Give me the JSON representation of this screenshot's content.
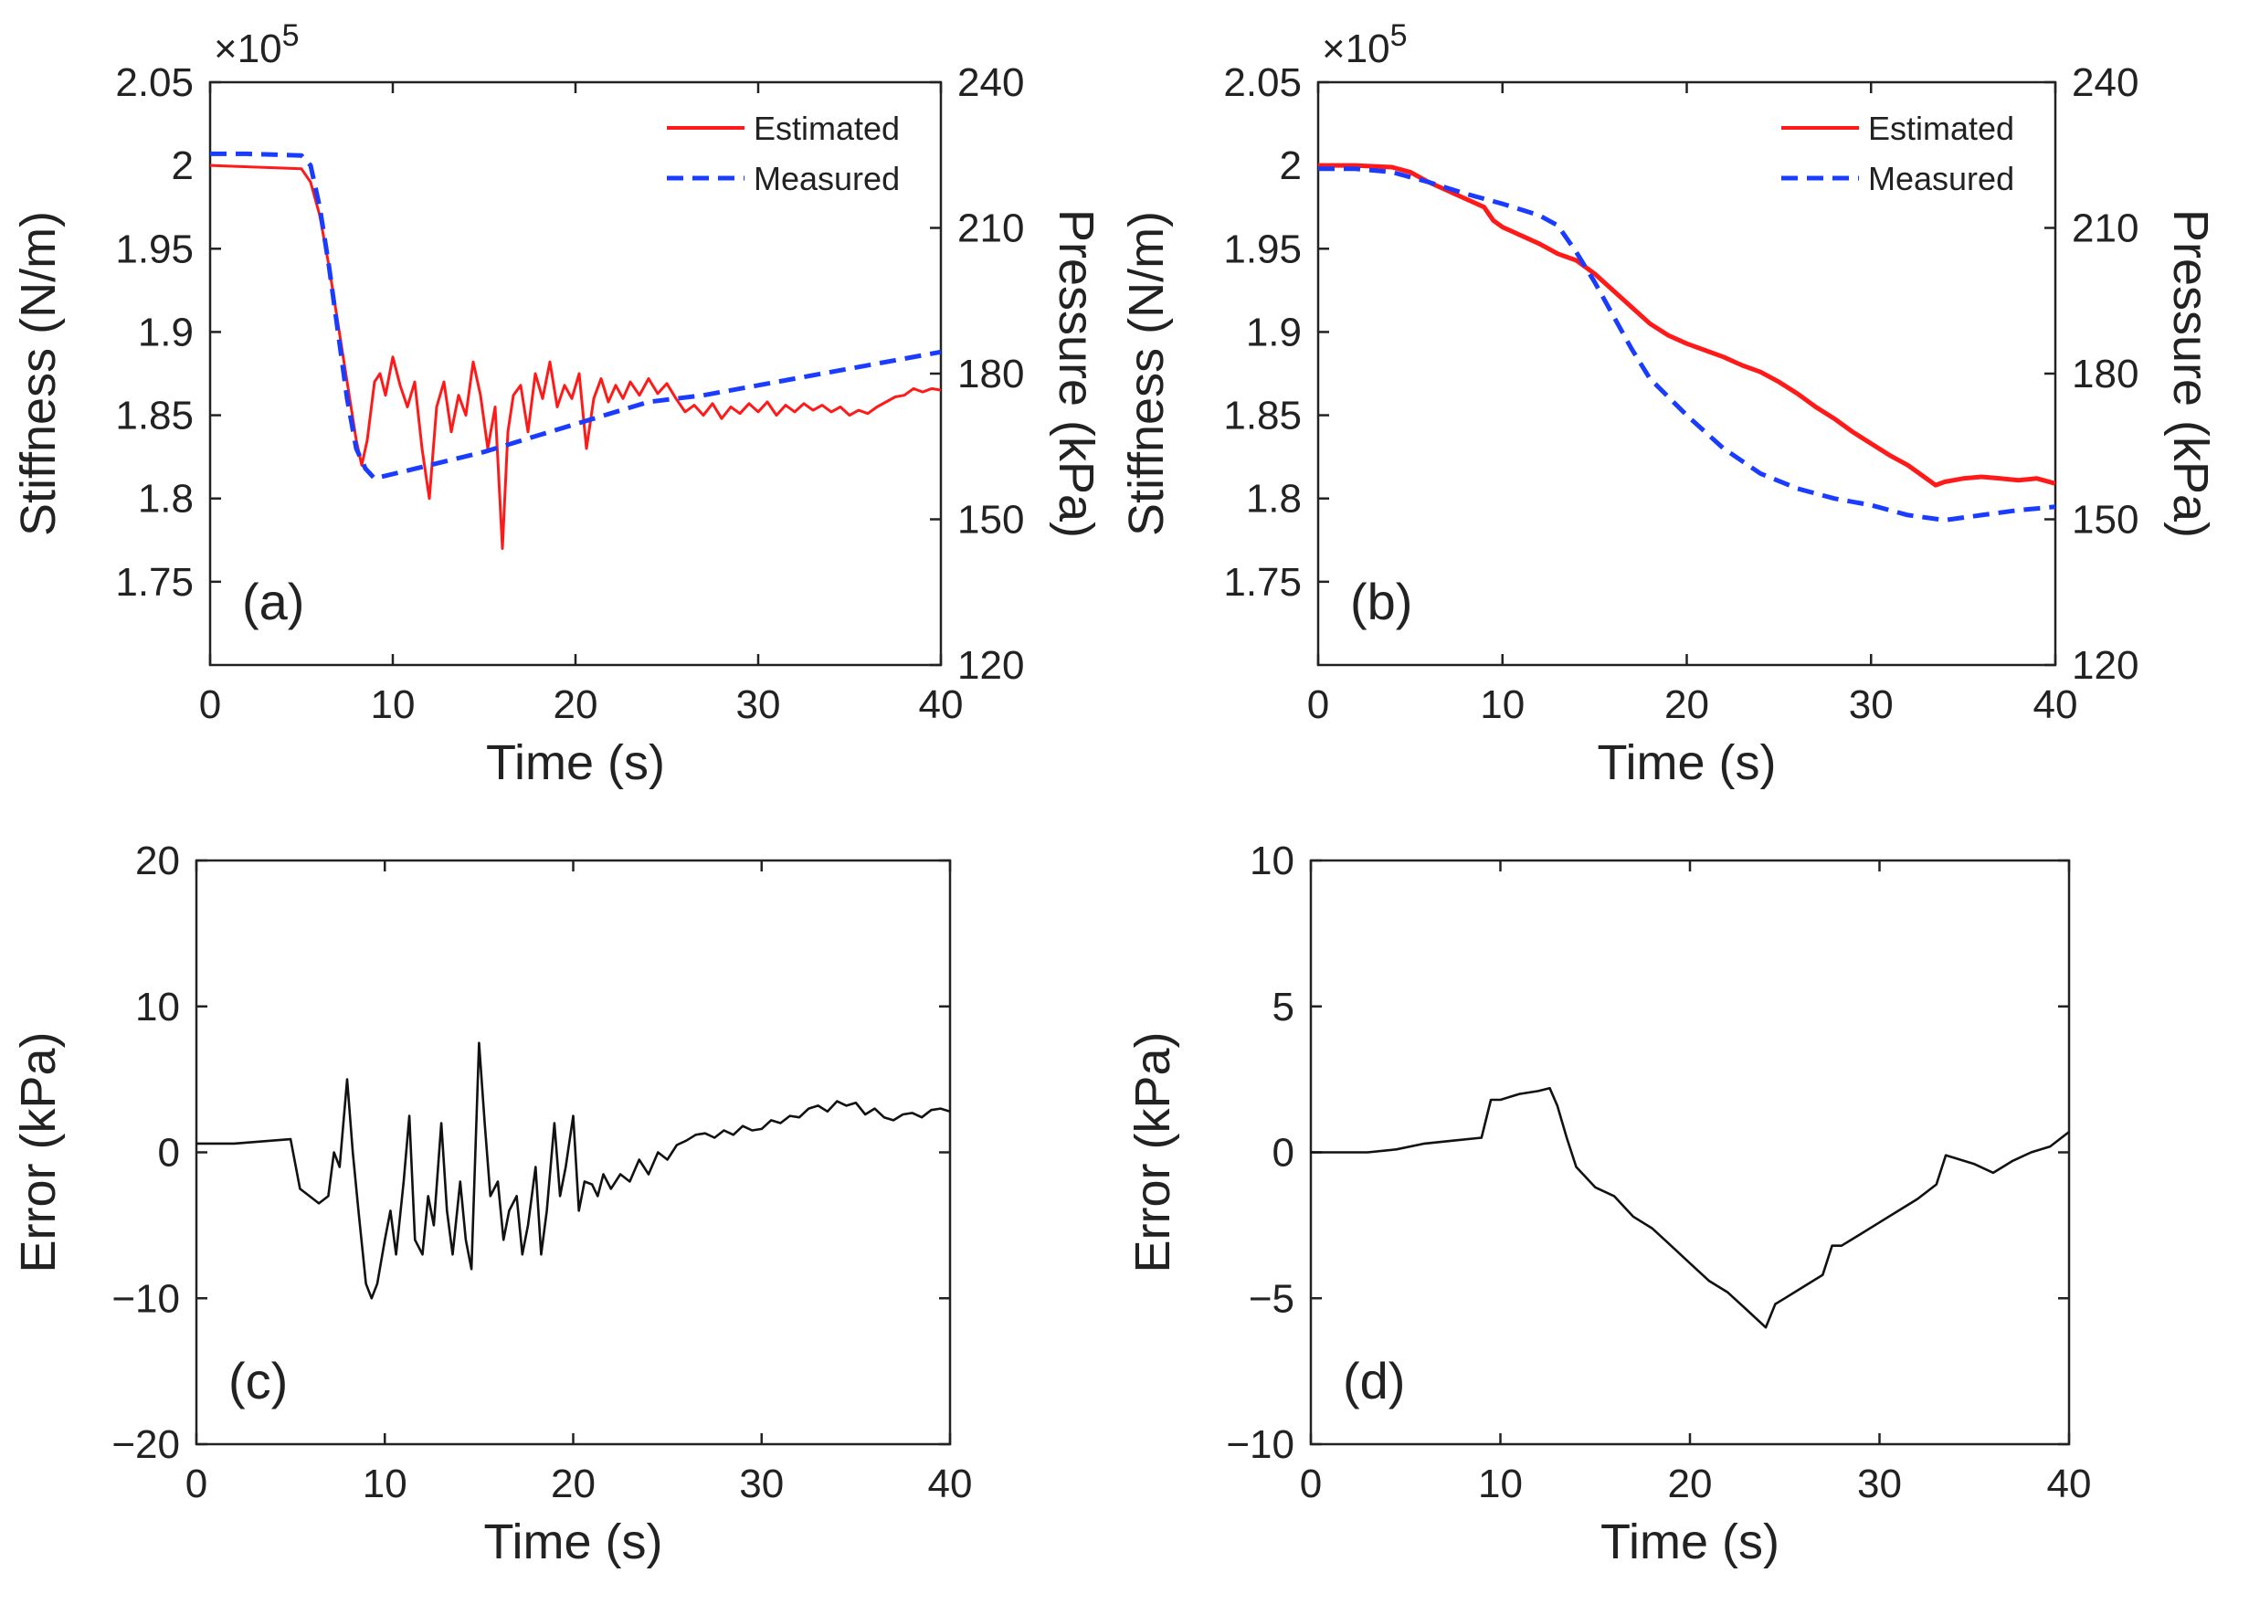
{
  "colors": {
    "estimated": "#ff1a1a",
    "measured": "#1a3cff",
    "error": "#111111",
    "axis": "#222222"
  },
  "chart_data": [
    {
      "id": "a",
      "type": "line",
      "panel_label": "(a)",
      "xlabel": "Time (s)",
      "ylabel": "Stiffness (N/m)",
      "ylabel_right": "Pressure (kPa)",
      "exponent_label": "×10",
      "exponent_power": "5",
      "xlim": [
        0,
        40
      ],
      "ylim": [
        1.7,
        2.05
      ],
      "ylim_right": [
        120,
        240
      ],
      "xticks": [
        "0",
        "10",
        "20",
        "30",
        "40"
      ],
      "yticks": [
        "2.05",
        "2",
        "1.95",
        "1.9",
        "1.85",
        "1.8",
        "1.75"
      ],
      "yticks_right": [
        "240",
        "210",
        "180",
        "150",
        "120"
      ],
      "legend": [
        "Estimated",
        "Measured"
      ],
      "legend_position": "top-right",
      "series": [
        {
          "name": "Estimated",
          "axis": "left",
          "style": "solid",
          "x": [
            0,
            5,
            5.5,
            6,
            6.5,
            7,
            7.5,
            8,
            8.3,
            8.6,
            9,
            9.3,
            9.6,
            10,
            10.4,
            10.8,
            11.2,
            11.6,
            12,
            12.4,
            12.8,
            13.2,
            13.6,
            14,
            14.4,
            14.8,
            15.2,
            15.6,
            16,
            16.3,
            16.6,
            17,
            17.4,
            17.8,
            18.2,
            18.6,
            19,
            19.4,
            19.8,
            20.2,
            20.6,
            21,
            21.4,
            21.8,
            22.2,
            22.6,
            23,
            23.5,
            24,
            24.5,
            25,
            25.5,
            26,
            26.5,
            27,
            27.5,
            28,
            28.5,
            29,
            29.5,
            30,
            30.5,
            31,
            31.5,
            32,
            32.5,
            33,
            33.5,
            34,
            34.5,
            35,
            35.5,
            36,
            36.5,
            37,
            37.5,
            38,
            38.5,
            39,
            39.5,
            40
          ],
          "y": [
            2.0,
            1.998,
            1.99,
            1.97,
            1.94,
            1.905,
            1.87,
            1.835,
            1.82,
            1.835,
            1.87,
            1.875,
            1.862,
            1.885,
            1.868,
            1.855,
            1.87,
            1.83,
            1.8,
            1.855,
            1.87,
            1.84,
            1.862,
            1.85,
            1.882,
            1.862,
            1.83,
            1.855,
            1.77,
            1.84,
            1.862,
            1.868,
            1.84,
            1.875,
            1.86,
            1.882,
            1.855,
            1.868,
            1.86,
            1.875,
            1.83,
            1.86,
            1.872,
            1.858,
            1.868,
            1.86,
            1.87,
            1.862,
            1.872,
            1.863,
            1.869,
            1.86,
            1.852,
            1.856,
            1.85,
            1.857,
            1.848,
            1.855,
            1.851,
            1.857,
            1.852,
            1.858,
            1.85,
            1.856,
            1.852,
            1.857,
            1.853,
            1.856,
            1.852,
            1.855,
            1.85,
            1.853,
            1.851,
            1.855,
            1.858,
            1.861,
            1.862,
            1.866,
            1.864,
            1.866,
            1.865
          ]
        },
        {
          "name": "Measured",
          "axis": "left",
          "style": "dashed",
          "x": [
            0,
            2,
            5,
            5.5,
            6,
            6.5,
            7,
            7.5,
            8,
            8.5,
            9,
            12,
            15,
            18,
            21,
            24,
            27,
            30,
            33,
            36,
            40
          ],
          "y": [
            2.007,
            2.007,
            2.006,
            2.0,
            1.975,
            1.94,
            1.9,
            1.86,
            1.83,
            1.818,
            1.812,
            1.82,
            1.828,
            1.838,
            1.848,
            1.858,
            1.862,
            1.868,
            1.874,
            1.88,
            1.888
          ]
        }
      ]
    },
    {
      "id": "b",
      "type": "line",
      "panel_label": "(b)",
      "xlabel": "Time (s)",
      "ylabel": "Stiffness (N/m)",
      "ylabel_right": "Pressure (kPa)",
      "exponent_label": "×10",
      "exponent_power": "5",
      "xlim": [
        0,
        40
      ],
      "ylim": [
        1.7,
        2.05
      ],
      "ylim_right": [
        120,
        240
      ],
      "xticks": [
        "0",
        "10",
        "20",
        "30",
        "40"
      ],
      "yticks": [
        "2.05",
        "2",
        "1.95",
        "1.9",
        "1.85",
        "1.8",
        "1.75"
      ],
      "yticks_right": [
        "240",
        "210",
        "180",
        "150",
        "120"
      ],
      "legend": [
        "Estimated",
        "Measured"
      ],
      "legend_position": "top-right",
      "series": [
        {
          "name": "Estimated",
          "axis": "left",
          "style": "solid",
          "x": [
            0,
            2,
            4,
            5,
            6,
            7,
            8,
            9,
            9.5,
            10,
            11,
            12,
            13,
            14,
            15,
            16,
            17,
            18,
            19,
            20,
            21,
            22,
            23,
            24,
            25,
            26,
            27,
            28,
            29,
            30,
            31,
            32,
            33,
            33.5,
            34,
            35,
            36,
            37,
            38,
            39,
            40
          ],
          "y": [
            2.0,
            2.0,
            1.999,
            1.996,
            1.99,
            1.985,
            1.98,
            1.975,
            1.967,
            1.963,
            1.958,
            1.953,
            1.947,
            1.943,
            1.935,
            1.925,
            1.915,
            1.905,
            1.898,
            1.893,
            1.889,
            1.885,
            1.88,
            1.876,
            1.87,
            1.863,
            1.855,
            1.848,
            1.84,
            1.833,
            1.826,
            1.82,
            1.812,
            1.808,
            1.81,
            1.812,
            1.813,
            1.812,
            1.811,
            1.812,
            1.809
          ]
        },
        {
          "name": "Measured",
          "axis": "left",
          "style": "dashed",
          "x": [
            0,
            2,
            4,
            6,
            8,
            10,
            12,
            13,
            14,
            15,
            16,
            17,
            18,
            20,
            22,
            24,
            26,
            28,
            30,
            32,
            34,
            36,
            38,
            40
          ],
          "y": [
            1.998,
            1.998,
            1.996,
            1.99,
            1.983,
            1.977,
            1.97,
            1.964,
            1.948,
            1.93,
            1.91,
            1.89,
            1.872,
            1.85,
            1.83,
            1.815,
            1.806,
            1.8,
            1.796,
            1.79,
            1.787,
            1.79,
            1.793,
            1.795
          ]
        }
      ]
    },
    {
      "id": "c",
      "type": "line",
      "panel_label": "(c)",
      "xlabel": "Time (s)",
      "ylabel": "Error (kPa)",
      "xlim": [
        0,
        40
      ],
      "ylim": [
        -20,
        20
      ],
      "xticks": [
        "0",
        "10",
        "20",
        "30",
        "40"
      ],
      "yticks": [
        "20",
        "10",
        "0",
        "−10",
        "−20"
      ],
      "series": [
        {
          "name": "Error",
          "axis": "left",
          "style": "solid",
          "x": [
            0,
            2,
            5,
            5.5,
            6,
            6.5,
            7,
            7.3,
            7.6,
            8,
            8.3,
            8.6,
            9,
            9.3,
            9.6,
            10,
            10.3,
            10.6,
            11,
            11.3,
            11.6,
            12,
            12.3,
            12.6,
            13,
            13.3,
            13.6,
            14,
            14.3,
            14.6,
            15,
            15.3,
            15.6,
            16,
            16.3,
            16.6,
            17,
            17.3,
            17.6,
            18,
            18.3,
            18.6,
            19,
            19.3,
            19.6,
            20,
            20.3,
            20.6,
            21,
            21.3,
            21.6,
            22,
            22.5,
            23,
            23.5,
            24,
            24.5,
            25,
            25.5,
            26,
            26.5,
            27,
            27.5,
            28,
            28.5,
            29,
            29.5,
            30,
            30.5,
            31,
            31.5,
            32,
            32.5,
            33,
            33.5,
            34,
            34.5,
            35,
            35.5,
            36,
            36.5,
            37,
            37.5,
            38,
            38.5,
            39,
            39.5,
            40
          ],
          "y": [
            0.6,
            0.6,
            0.9,
            -2.5,
            -3,
            -3.5,
            -3,
            0,
            -1,
            5,
            0,
            -4,
            -9,
            -10,
            -9,
            -6,
            -4,
            -7,
            -2,
            2.5,
            -6,
            -7,
            -3,
            -5,
            2,
            -4,
            -7,
            -2,
            -6,
            -8,
            7.5,
            2,
            -3,
            -2,
            -6,
            -4,
            -3,
            -7,
            -5,
            -1,
            -7,
            -4,
            2,
            -3,
            -1,
            2.5,
            -4,
            -2,
            -2.2,
            -3,
            -1.5,
            -2.5,
            -1.5,
            -2,
            -0.5,
            -1.5,
            0,
            -0.5,
            0.5,
            0.8,
            1.2,
            1.3,
            1.0,
            1.5,
            1.2,
            1.8,
            1.5,
            1.6,
            2.2,
            2.0,
            2.5,
            2.4,
            3.0,
            3.2,
            2.8,
            3.5,
            3.2,
            3.4,
            2.6,
            3.0,
            2.4,
            2.2,
            2.6,
            2.7,
            2.4,
            2.9,
            3.0,
            2.8
          ]
        }
      ]
    },
    {
      "id": "d",
      "type": "line",
      "panel_label": "(d)",
      "xlabel": "Time (s)",
      "ylabel": "Error (kPa)",
      "xlim": [
        0,
        40
      ],
      "ylim": [
        -10,
        10
      ],
      "xticks": [
        "0",
        "10",
        "20",
        "30",
        "40"
      ],
      "yticks": [
        "10",
        "5",
        "0",
        "−5",
        "−10"
      ],
      "series": [
        {
          "name": "Error",
          "axis": "left",
          "style": "solid",
          "x": [
            0,
            3,
            4.5,
            6,
            7.5,
            9,
            9.5,
            10,
            11,
            12,
            12.6,
            13,
            13.5,
            14,
            15,
            16,
            17,
            18,
            19,
            20,
            21,
            22,
            23,
            24,
            24.5,
            25,
            26,
            27,
            27.5,
            28,
            29,
            30,
            31,
            32,
            33,
            33.5,
            34,
            35,
            36,
            37,
            38,
            39,
            40
          ],
          "y": [
            0,
            0,
            0.1,
            0.3,
            0.4,
            0.5,
            1.8,
            1.8,
            2.0,
            2.1,
            2.2,
            1.6,
            0.5,
            -0.5,
            -1.2,
            -1.5,
            -2.2,
            -2.6,
            -3.2,
            -3.8,
            -4.4,
            -4.8,
            -5.4,
            -6.0,
            -5.2,
            -5.0,
            -4.6,
            -4.2,
            -3.2,
            -3.2,
            -2.8,
            -2.4,
            -2.0,
            -1.6,
            -1.1,
            -0.1,
            -0.2,
            -0.4,
            -0.7,
            -0.3,
            0.0,
            0.2,
            0.7
          ]
        }
      ]
    }
  ]
}
